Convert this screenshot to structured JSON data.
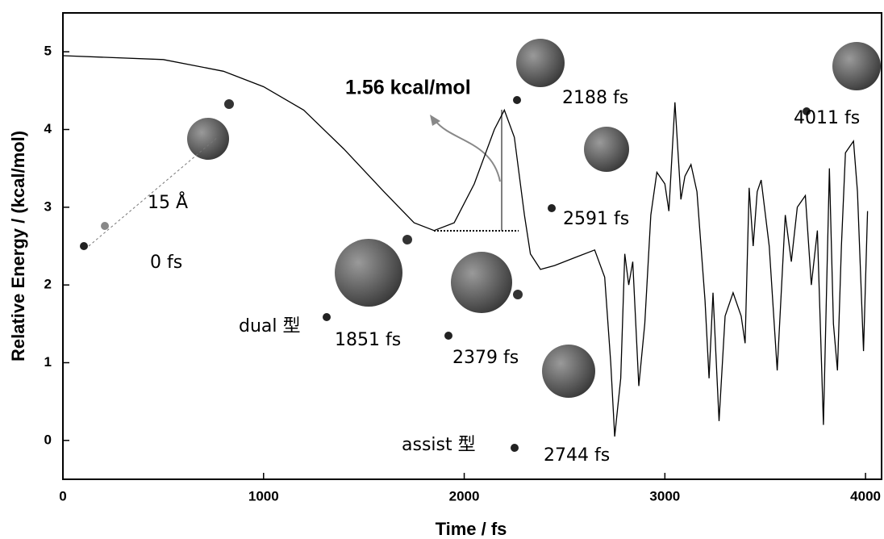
{
  "chart_data": {
    "type": "line",
    "x_label": "Time / fs",
    "y_label": "Relative Energy / (kcal/mol)",
    "xlim": [
      0,
      4080
    ],
    "ylim": [
      -0.5,
      5.5
    ],
    "xticks": [
      0,
      1000,
      2000,
      3000,
      4000
    ],
    "yticks": [
      0,
      1,
      2,
      3,
      4,
      5
    ],
    "color": "#000000",
    "x": [
      0,
      500,
      800,
      1000,
      1200,
      1400,
      1600,
      1750,
      1850,
      1950,
      2050,
      2150,
      2200,
      2250,
      2300,
      2330,
      2380,
      2450,
      2550,
      2650,
      2700,
      2730,
      2750,
      2780,
      2800,
      2820,
      2840,
      2870,
      2900,
      2930,
      2960,
      3000,
      3020,
      3050,
      3080,
      3100,
      3130,
      3160,
      3200,
      3220,
      3240,
      3270,
      3300,
      3340,
      3380,
      3400,
      3420,
      3440,
      3460,
      3480,
      3520,
      3560,
      3600,
      3630,
      3660,
      3700,
      3730,
      3760,
      3790,
      3820,
      3840,
      3860,
      3880,
      3900,
      3940,
      3960,
      3990,
      4010
    ],
    "values": [
      4.95,
      4.9,
      4.75,
      4.55,
      4.25,
      3.75,
      3.2,
      2.8,
      2.7,
      2.8,
      3.3,
      4.0,
      4.25,
      3.9,
      2.9,
      2.4,
      2.2,
      2.25,
      2.35,
      2.45,
      2.1,
      1.0,
      0.05,
      0.8,
      2.4,
      2.0,
      2.3,
      0.7,
      1.5,
      2.9,
      3.45,
      3.3,
      2.95,
      4.35,
      3.1,
      3.4,
      3.55,
      3.2,
      1.8,
      0.8,
      1.9,
      0.25,
      1.6,
      1.9,
      1.6,
      1.25,
      3.25,
      2.5,
      3.2,
      3.35,
      2.5,
      0.9,
      2.9,
      2.3,
      3.0,
      3.15,
      2.0,
      2.7,
      0.2,
      3.5,
      1.5,
      0.9,
      2.5,
      3.7,
      3.85,
      3.2,
      1.15,
      2.95
    ],
    "annotations": [
      "15 Å",
      "0 fs",
      "dual 型",
      "1851 fs",
      "2379 fs",
      "assist 型",
      "2744 fs",
      "1.56 kcal/mol",
      "2188 fs",
      "2591 fs",
      "4011 fs"
    ]
  }
}
